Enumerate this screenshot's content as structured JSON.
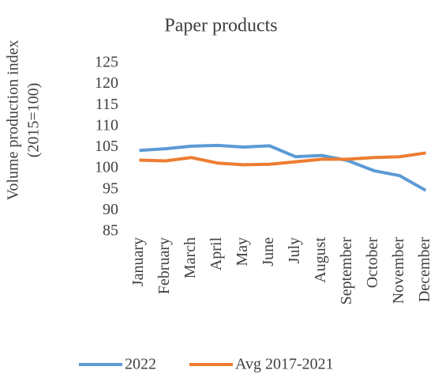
{
  "chart_data": {
    "type": "line",
    "title": "Paper products",
    "y_label": [
      "Volume production index",
      "(2015=100)"
    ],
    "categories": [
      "January",
      "February",
      "March",
      "April",
      "May",
      "June",
      "July",
      "August",
      "September",
      "October",
      "November",
      "December"
    ],
    "series": [
      {
        "name": "2022",
        "color": "#5b9bd5",
        "values": [
          104.3,
          104.7,
          105.3,
          105.5,
          105.1,
          105.4,
          102.8,
          103.1,
          101.9,
          99.5,
          98.3,
          94.8
        ]
      },
      {
        "name": "Avg 2017-2021",
        "color": "#ed7d31",
        "values": [
          102.0,
          101.8,
          102.6,
          101.3,
          100.9,
          101.0,
          101.6,
          102.2,
          102.2,
          102.6,
          102.8,
          103.7
        ]
      }
    ],
    "ylim": [
      85,
      125
    ],
    "yticks": [
      85,
      90,
      95,
      100,
      105,
      110,
      115,
      120,
      125
    ],
    "grid": false,
    "legend": "bottom"
  }
}
